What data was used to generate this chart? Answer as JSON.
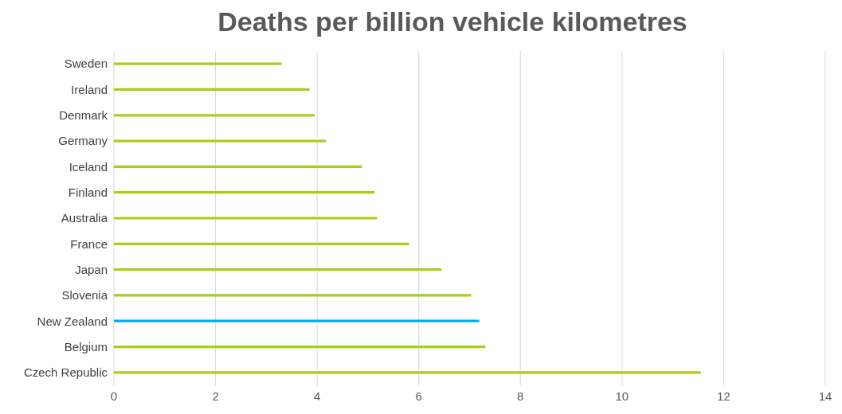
{
  "chart_data": {
    "type": "bar",
    "orientation": "horizontal",
    "title": "Deaths per billion vehicle kilometres",
    "categories": [
      "Sweden",
      "Ireland",
      "Denmark",
      "Germany",
      "Iceland",
      "Finland",
      "Australia",
      "France",
      "Japan",
      "Slovenia",
      "New Zealand",
      "Belgium",
      "Czech Republic"
    ],
    "values": [
      3.3,
      3.85,
      3.95,
      4.17,
      4.88,
      5.13,
      5.18,
      5.81,
      6.45,
      7.03,
      7.19,
      7.31,
      11.55
    ],
    "colors": [
      "#a8cf17",
      "#a8cf17",
      "#a8cf17",
      "#a8cf17",
      "#a8cf17",
      "#a8cf17",
      "#a8cf17",
      "#a8cf17",
      "#a8cf17",
      "#a8cf17",
      "#00aeef",
      "#a8cf17",
      "#a8cf17"
    ],
    "xlim": [
      0,
      14
    ],
    "xticks": [
      0,
      2,
      4,
      6,
      8,
      10,
      12,
      14
    ],
    "grid": "x"
  }
}
